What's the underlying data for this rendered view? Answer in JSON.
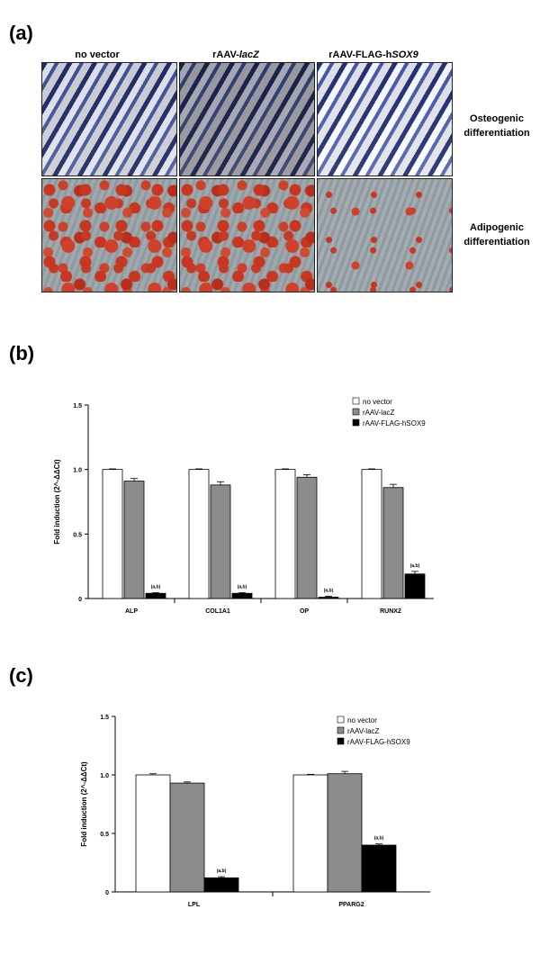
{
  "panel_a": {
    "letter": "(a)",
    "columns": [
      "no vector",
      "rAAV-lacZ",
      "rAAV-FLAG-hSOX9"
    ],
    "rows": [
      {
        "line1": "Osteogenic",
        "line2": "differentiation"
      },
      {
        "line1": "Adipogenic",
        "line2": "differentiation"
      }
    ]
  },
  "panel_b": {
    "letter": "(b)"
  },
  "panel_c": {
    "letter": "(c)"
  },
  "colors": {
    "no_vector": "#ffffff",
    "lacz": "#8c8c8c",
    "sox9": "#000000"
  },
  "chart_data": [
    {
      "type": "bar",
      "ylabel": "Fold induction (2^-ΔΔCt)",
      "ylim": [
        0,
        1.5
      ],
      "yticks": [
        "0",
        "0.5",
        "1.0",
        "1.5"
      ],
      "categories": [
        "ALP",
        "COL1A1",
        "OP",
        "RUNX2"
      ],
      "series": [
        {
          "name": "no vector",
          "values": [
            1.0,
            1.0,
            1.0,
            1.0
          ],
          "errors": [
            0.005,
            0.005,
            0.005,
            0.005
          ]
        },
        {
          "name": "rAAV-lacZ",
          "values": [
            0.91,
            0.88,
            0.94,
            0.86
          ],
          "errors": [
            0.02,
            0.025,
            0.02,
            0.025
          ]
        },
        {
          "name": "rAAV-FLAG-hSOX9",
          "values": [
            0.04,
            0.04,
            0.01,
            0.19
          ],
          "errors": [
            0.005,
            0.005,
            0.008,
            0.02
          ]
        }
      ],
      "annotations": [
        "(a,b)",
        "(a,b)",
        "(a,b)",
        "(a,b)"
      ],
      "legend": "top-right"
    },
    {
      "type": "bar",
      "ylabel": "Fold induction (2^-ΔΔCt)",
      "ylim": [
        0,
        1.5
      ],
      "yticks": [
        "0",
        "0.5",
        "1.0",
        "1.5"
      ],
      "categories": [
        "LPL",
        "PPARG2"
      ],
      "series": [
        {
          "name": "no vector",
          "values": [
            1.0,
            1.0
          ],
          "errors": [
            0.01,
            0.005
          ]
        },
        {
          "name": "rAAV-lacZ",
          "values": [
            0.93,
            1.01
          ],
          "errors": [
            0.01,
            0.02
          ]
        },
        {
          "name": "rAAV-FLAG-hSOX9",
          "values": [
            0.12,
            0.4
          ],
          "errors": [
            0.01,
            0.01
          ]
        }
      ],
      "annotations": [
        "(a,b)",
        "(a,b)"
      ],
      "legend": "top-right"
    }
  ]
}
